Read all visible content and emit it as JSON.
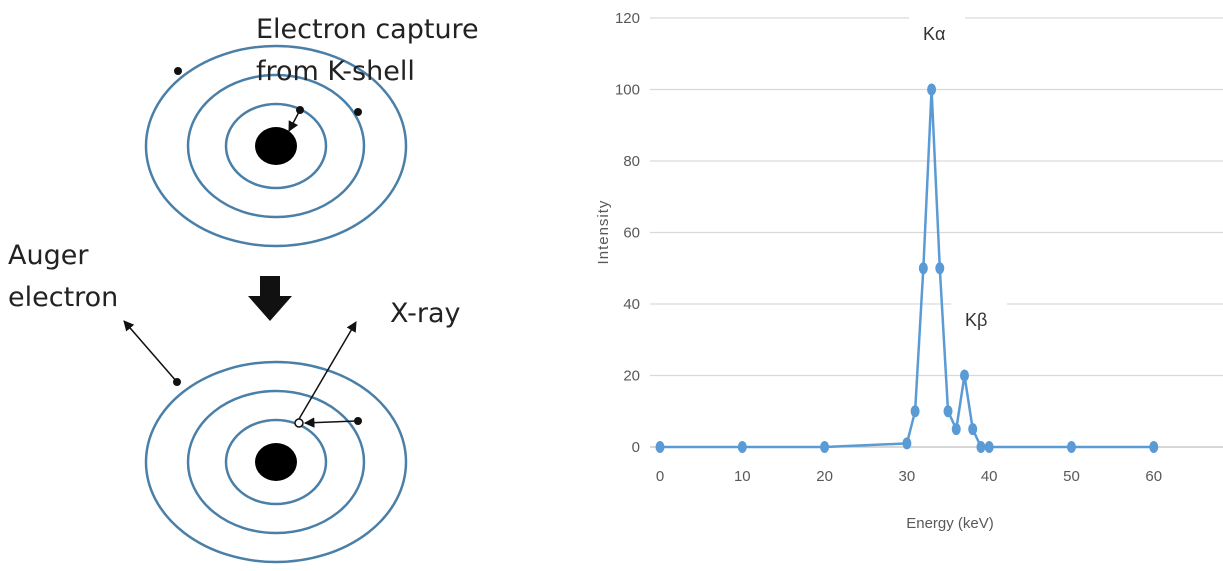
{
  "diagram": {
    "labels": [
      "Electron capture",
      "from K-shell",
      "Auger",
      "electron",
      "X-ray"
    ]
  },
  "chart_data": {
    "type": "line",
    "x_label": "Energy (keV)",
    "y_label": "Intensity",
    "x": [
      0,
      10,
      20,
      30,
      31,
      32,
      33,
      34,
      35,
      36,
      37,
      38,
      39,
      40,
      50,
      60
    ],
    "values": [
      0,
      0,
      0,
      1,
      10,
      50,
      100,
      50,
      10,
      5,
      20,
      5,
      0,
      0,
      0,
      0
    ],
    "color": "#5b9bd5",
    "xlim": [
      0,
      68
    ],
    "xticks": [
      0,
      10,
      20,
      30,
      40,
      50,
      60
    ],
    "ylim": [
      0,
      120
    ],
    "yticks": [
      0,
      20,
      40,
      60,
      80,
      100,
      120
    ],
    "grid": true,
    "annotations": [
      "Kα",
      "Kβ"
    ]
  }
}
